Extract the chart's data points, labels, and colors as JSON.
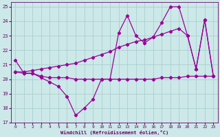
{
  "xlabel": "Windchill (Refroidissement éolien,°C)",
  "background_color": "#cce8e8",
  "grid_color": "#aacfcf",
  "line_color": "#990099",
  "xlim": [
    -0.5,
    23.5
  ],
  "ylim": [
    17,
    25.3
  ],
  "yticks": [
    17,
    18,
    19,
    20,
    21,
    22,
    23,
    24,
    25
  ],
  "xticks": [
    0,
    1,
    2,
    3,
    4,
    5,
    6,
    7,
    8,
    9,
    10,
    11,
    12,
    13,
    14,
    15,
    16,
    17,
    18,
    19,
    20,
    21,
    22,
    23
  ],
  "s1_x": [
    0,
    1,
    2,
    3,
    4,
    5,
    6,
    7,
    8,
    9,
    10,
    11,
    12,
    13,
    14,
    15,
    16,
    17,
    18,
    19,
    20,
    21,
    22,
    23
  ],
  "s1_y": [
    21.3,
    20.4,
    20.4,
    20.1,
    19.8,
    19.5,
    18.8,
    17.5,
    18.0,
    18.6,
    20.0,
    20.0,
    23.2,
    24.4,
    23.0,
    22.5,
    22.9,
    23.9,
    25.0,
    25.0,
    23.0,
    20.7,
    24.1,
    20.2
  ],
  "s2_x": [
    0,
    1,
    2,
    3,
    4,
    5,
    6,
    7,
    8,
    9,
    10,
    11,
    12,
    13,
    14,
    15,
    16,
    17,
    18,
    19,
    20,
    21,
    22,
    23
  ],
  "s2_y": [
    20.5,
    20.4,
    20.4,
    20.2,
    20.1,
    20.1,
    20.1,
    20.0,
    20.0,
    20.0,
    20.0,
    20.0,
    20.0,
    20.0,
    20.0,
    20.0,
    20.0,
    20.1,
    20.1,
    20.1,
    20.2,
    20.2,
    20.2,
    20.2
  ],
  "s3_x": [
    0,
    1,
    2,
    3,
    4,
    5,
    6,
    7,
    8,
    9,
    10,
    11,
    12,
    13,
    14,
    15,
    16,
    17,
    18,
    19,
    20,
    21,
    22,
    23
  ],
  "s3_y": [
    20.5,
    20.5,
    20.6,
    20.7,
    20.8,
    20.9,
    21.0,
    21.1,
    21.3,
    21.5,
    21.7,
    21.9,
    22.2,
    22.4,
    22.6,
    22.7,
    22.9,
    23.1,
    23.3,
    23.5,
    23.0,
    20.7,
    24.1,
    20.2
  ]
}
